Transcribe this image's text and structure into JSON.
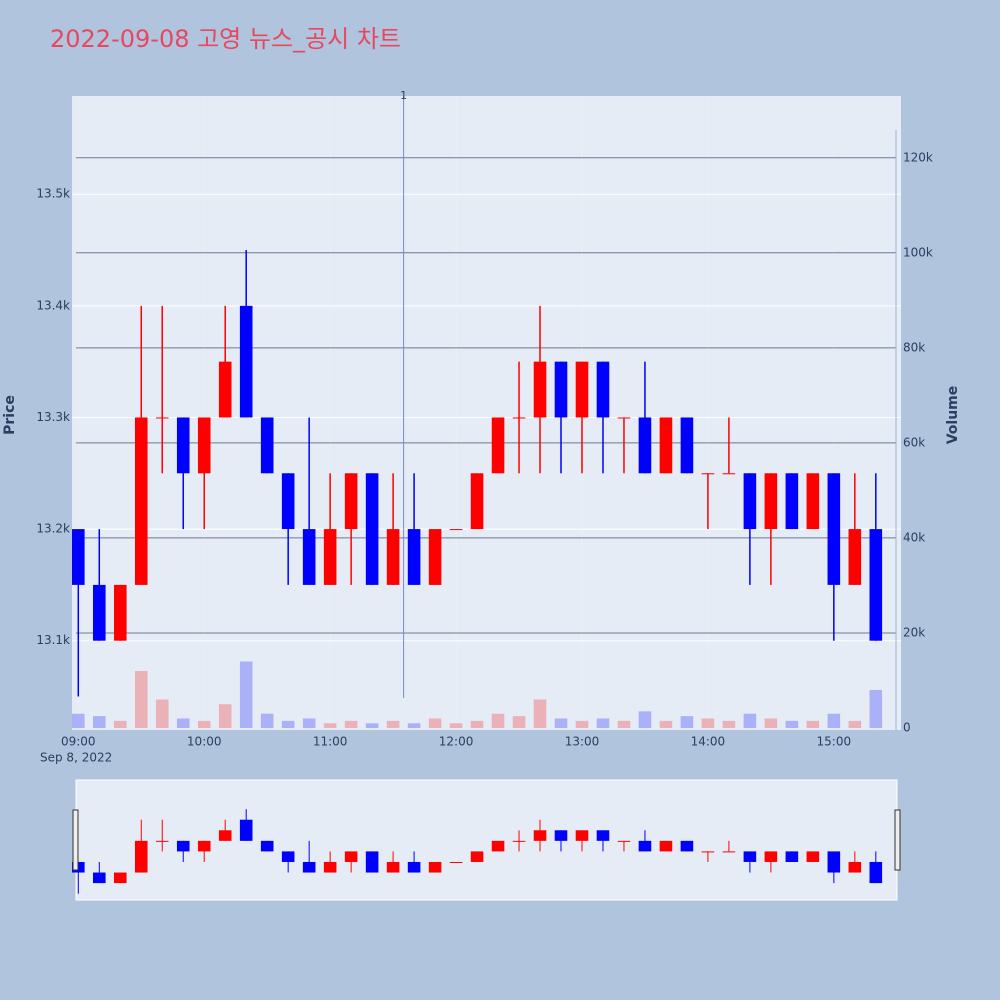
{
  "chart_data": {
    "type": "candlestick",
    "title": "2022-09-08 고영 뉴스_공시 차트",
    "y_label": "Price",
    "y2_label": "Volume",
    "date_label": "Sep 8, 2022",
    "increasing_color": "#ff0000",
    "decreasing_color": "#0000ff",
    "x": [
      "2022-09-08 09:00",
      "2022-09-08 09:10",
      "2022-09-08 09:20",
      "2022-09-08 09:30",
      "2022-09-08 09:40",
      "2022-09-08 09:50",
      "2022-09-08 10:00",
      "2022-09-08 10:10",
      "2022-09-08 10:20",
      "2022-09-08 10:30",
      "2022-09-08 10:40",
      "2022-09-08 10:50",
      "2022-09-08 11:00",
      "2022-09-08 11:10",
      "2022-09-08 11:20",
      "2022-09-08 11:30",
      "2022-09-08 11:40",
      "2022-09-08 11:50",
      "2022-09-08 12:00",
      "2022-09-08 12:10",
      "2022-09-08 12:20",
      "2022-09-08 12:30",
      "2022-09-08 12:40",
      "2022-09-08 12:50",
      "2022-09-08 13:00",
      "2022-09-08 13:10",
      "2022-09-08 13:20",
      "2022-09-08 13:30",
      "2022-09-08 13:40",
      "2022-09-08 13:50",
      "2022-09-08 14:00",
      "2022-09-08 14:10",
      "2022-09-08 14:20",
      "2022-09-08 14:30",
      "2022-09-08 14:40",
      "2022-09-08 14:50",
      "2022-09-08 15:00",
      "2022-09-08 15:10",
      "2022-09-08 15:20"
    ],
    "open": [
      13200,
      13150,
      13100,
      13150,
      13300,
      13300,
      13250,
      13300,
      13400,
      13300,
      13250,
      13200,
      13150,
      13200,
      13250,
      13150,
      13200,
      13150,
      13200,
      13200,
      13250,
      13300,
      13300,
      13350,
      13300,
      13350,
      13300,
      13300,
      13250,
      13300,
      13250,
      13250,
      13250,
      13200,
      13250,
      13200,
      13250,
      13150,
      13200
    ],
    "high": [
      13200,
      13200,
      13150,
      13400,
      13400,
      13300,
      13300,
      13400,
      13450,
      13300,
      13250,
      13300,
      13250,
      13250,
      13250,
      13250,
      13250,
      13200,
      13200,
      13250,
      13300,
      13350,
      13400,
      13350,
      13350,
      13350,
      13300,
      13350,
      13300,
      13300,
      13250,
      13300,
      13250,
      13250,
      13250,
      13250,
      13250,
      13250,
      13250
    ],
    "low": [
      13050,
      13100,
      13100,
      13150,
      13250,
      13200,
      13200,
      13300,
      13300,
      13250,
      13150,
      13150,
      13150,
      13150,
      13150,
      13150,
      13150,
      13150,
      13200,
      13200,
      13250,
      13250,
      13250,
      13250,
      13250,
      13250,
      13250,
      13250,
      13250,
      13250,
      13200,
      13250,
      13150,
      13150,
      13200,
      13200,
      13100,
      13150,
      13100
    ],
    "close": [
      13150,
      13100,
      13150,
      13300,
      13300,
      13250,
      13300,
      13350,
      13300,
      13250,
      13200,
      13150,
      13200,
      13250,
      13150,
      13200,
      13150,
      13200,
      13200,
      13250,
      13300,
      13300,
      13350,
      13300,
      13350,
      13300,
      13300,
      13250,
      13300,
      13250,
      13250,
      13250,
      13200,
      13250,
      13200,
      13250,
      13150,
      13200,
      13100
    ],
    "volume": [
      3000,
      2500,
      1500,
      12000,
      6000,
      2000,
      1500,
      5000,
      14000,
      3000,
      1500,
      2000,
      1000,
      1500,
      1000,
      1500,
      1000,
      2000,
      1000,
      1500,
      3000,
      2500,
      6000,
      2000,
      1500,
      2000,
      1500,
      3500,
      1500,
      2500,
      2000,
      1500,
      3000,
      2000,
      1500,
      1500,
      3000,
      1500,
      8000
    ],
    "xlim": [
      "2022-09-08 08:57",
      "2022-09-08 15:32"
    ],
    "xticks": [
      {
        "value": "2022-09-08 09:00",
        "label": "09:00"
      },
      {
        "value": "2022-09-08 10:00",
        "label": "10:00"
      },
      {
        "value": "2022-09-08 11:00",
        "label": "11:00"
      },
      {
        "value": "2022-09-08 12:00",
        "label": "12:00"
      },
      {
        "value": "2022-09-08 13:00",
        "label": "13:00"
      },
      {
        "value": "2022-09-08 14:00",
        "label": "14:00"
      },
      {
        "value": "2022-09-08 15:00",
        "label": "15:00"
      }
    ],
    "ylim": [
      13020,
      13588
    ],
    "yticks": [
      {
        "value": 13100,
        "label": "13.1k"
      },
      {
        "value": 13200,
        "label": "13.2k"
      },
      {
        "value": 13300,
        "label": "13.3k"
      },
      {
        "value": 13400,
        "label": "13.4k"
      },
      {
        "value": 13500,
        "label": "13.5k"
      }
    ],
    "y2lim": [
      0,
      133000
    ],
    "y2ticks": [
      0,
      {
        "value": 20000,
        "label": "20k"
      },
      {
        "value": 40000,
        "label": "40k"
      },
      {
        "value": 60000,
        "label": "60k"
      },
      {
        "value": 80000,
        "label": "80k"
      },
      {
        "value": 100000,
        "label": "100k"
      },
      {
        "value": 120000,
        "label": "120k"
      }
    ],
    "annotation": {
      "x": "2022-09-08 11:35",
      "text": "1"
    },
    "grid": true,
    "rangeslider": true
  }
}
